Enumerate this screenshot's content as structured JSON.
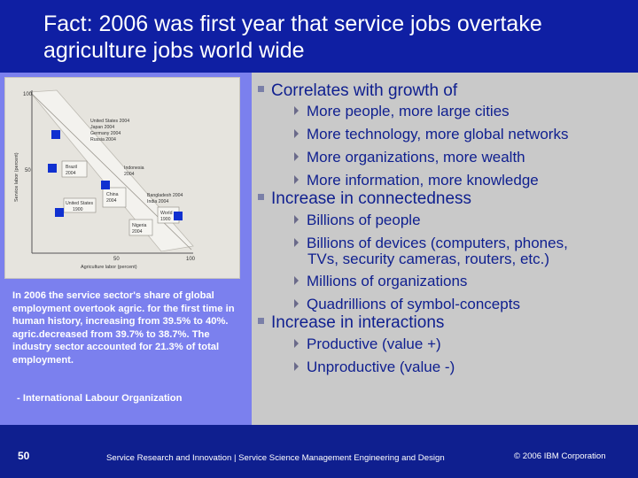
{
  "title": "Fact: 2006 was first year that service jobs overtake agriculture jobs world wide",
  "chart": {
    "y_top": "100",
    "y_mid": "50",
    "x_mid": "50",
    "x_right": "100",
    "y_axis_label": "Service labor (percent)",
    "x_axis_label": "Agriculture labor (percent)",
    "labels": {
      "usa2004": [
        "United States 2004",
        "Japan 2004",
        "Germany 2004",
        "Russia 2004"
      ],
      "brazil": [
        "Brazil",
        "2004"
      ],
      "indonesia": [
        "Indonesia",
        "2004"
      ],
      "china": [
        "China",
        "2004"
      ],
      "usa1900": [
        "United States",
        "1900"
      ],
      "bangladesh": [
        "Bangladesh 2004",
        "India 2004"
      ],
      "nigeria": [
        "Nigeria",
        "2004"
      ],
      "world": [
        "World",
        "1900"
      ]
    }
  },
  "caption": "In 2006 the service sector's share of global employment overtook agric. for the first time in human history, increasing from 39.5% to 40%. agric.decreased from 39.7% to 38.7%. The industry sector accounted for 21.3% of total employment.",
  "source": "- International Labour Organization",
  "bullets": {
    "b1": "Correlates with growth of",
    "b1_items": [
      "More people, more large cities",
      "More technology, more global networks",
      "More organizations, more wealth",
      "More information, more knowledge"
    ],
    "b2": "Increase in connectedness",
    "b2_items": [
      "Billions of people",
      "Billions of devices (computers, phones,",
      "TVs, security cameras, routers, etc.)",
      "Millions of organizations",
      "Quadrillions of symbol-concepts"
    ],
    "b3": "Increase in interactions",
    "b3_items": [
      "Productive (value +)",
      "Unproductive (value -)"
    ]
  },
  "footer": {
    "page": "50",
    "center": "Service Research and Innovation | Service Science Management Engineering and Design",
    "right": "© 2006 IBM Corporation"
  },
  "colors": {
    "navy": "#0f1f8f",
    "periwinkle": "#7b80ee",
    "grey": "#c9c9c9",
    "marker": "#1030d0"
  }
}
